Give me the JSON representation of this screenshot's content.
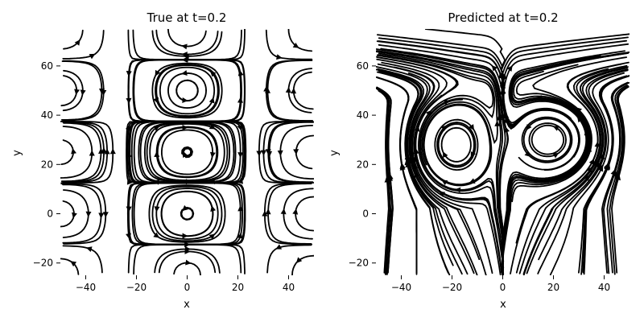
{
  "chart_data": [
    {
      "type": "streamplot",
      "title": "True at t=0.2",
      "xlabel": "x",
      "ylabel": "y",
      "xlim": [
        -50,
        50
      ],
      "ylim": [
        -25,
        75
      ],
      "xticks": [
        -40,
        -20,
        0,
        20,
        40
      ],
      "xtick_labels": [
        "−40",
        "−20",
        "0",
        "20",
        "40"
      ],
      "yticks": [
        -20,
        0,
        20,
        40,
        60
      ],
      "ytick_labels": [
        "−20",
        "0",
        "20",
        "40",
        "60"
      ],
      "line_color": "#000000",
      "grid": false
    },
    {
      "type": "streamplot",
      "title": "Predicted at t=0.2",
      "xlabel": "x",
      "ylabel": "y",
      "xlim": [
        -50,
        50
      ],
      "ylim": [
        -25,
        75
      ],
      "xticks": [
        -40,
        -20,
        0,
        20,
        40
      ],
      "xtick_labels": [
        "−40",
        "−20",
        "0",
        "20",
        "40"
      ],
      "yticks": [
        -20,
        0,
        20,
        40,
        60
      ],
      "ytick_labels": [
        "−20",
        "0",
        "20",
        "40",
        "60"
      ],
      "line_color": "#000000",
      "grid": false
    }
  ]
}
